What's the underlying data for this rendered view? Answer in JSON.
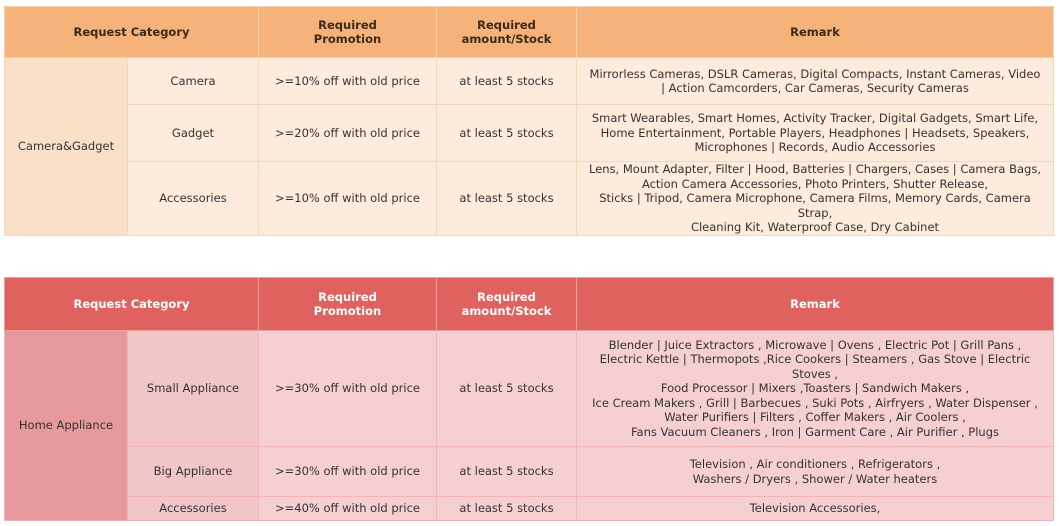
{
  "table_camera": {
    "headers": {
      "category": "Request Category",
      "promotion_1": "Required",
      "promotion_2": "Promotion",
      "amount_1": "Required",
      "amount_2": "amount/Stock",
      "remark": "Remark"
    },
    "group": "Camera&Gadget",
    "rows": [
      {
        "sub": "Camera",
        "promotion": ">=10% off with old price",
        "amount": "at least 5 stocks",
        "remark_lines": [
          "Mirrorless Cameras, DSLR Cameras, Digital Compacts, Instant Cameras, Video",
          "| Action Camcorders, Car Cameras, Security Cameras"
        ]
      },
      {
        "sub": "Gadget",
        "promotion": ">=20% off with old price",
        "amount": "at least 5 stocks",
        "remark_lines": [
          "Smart Wearables, Smart Homes, Activity Tracker, Digital Gadgets, Smart Life,",
          "Home Entertainment, Portable Players, Headphones | Headsets, Speakers,",
          "Microphones | Records, Audio Accessories"
        ]
      },
      {
        "sub": "Accessories",
        "promotion": ">=10% off with old price",
        "amount": "at least 5 stocks",
        "remark_lines": [
          "Lens, Mount Adapter, Filter | Hood, Batteries | Chargers, Cases | Camera Bags,",
          "Action Camera Accessories, Photo Printers, Shutter Release,",
          "Sticks | Tripod, Camera Microphone, Camera Films, Memory Cards, Camera Strap,",
          "Cleaning Kit, Waterproof Case, Dry Cabinet"
        ]
      }
    ]
  },
  "table_home": {
    "headers": {
      "category": "Request Category",
      "promotion_1": "Required",
      "promotion_2": "Promotion",
      "amount_1": "Required",
      "amount_2": "amount/Stock",
      "remark": "Remark"
    },
    "group": "Home Appliance",
    "rows": [
      {
        "sub": "Small Appliance",
        "promotion": ">=30% off with old price",
        "amount": "at least 5 stocks",
        "remark_lines": [
          "Blender | Juice Extractors , Microwave | Ovens , Electric Pot | Grill Pans ,",
          "Electric Kettle | Thermopots ,Rice Cookers | Steamers , Gas Stove | Electric Stoves ,",
          "Food Processor | Mixers ,Toasters | Sandwich Makers ,",
          "Ice Cream Makers , Grill | Barbecues , Suki Pots , Airfryers , Water Dispenser ,",
          "Water Purifiers | Filters , Coffer Makers , Air Coolers ,",
          "Fans Vacuum Cleaners , Iron | Garment Care , Air Purifier , Plugs"
        ]
      },
      {
        "sub": "Big Appliance",
        "promotion": ">=30% off with old price",
        "amount": "at least 5 stocks",
        "remark_lines": [
          "Television , Air conditioners , Refrigerators ,",
          "Washers / Dryers , Shower / Water heaters"
        ]
      },
      {
        "sub": "Accessories",
        "promotion": ">=40% off with old price",
        "amount": "at least 5 stocks",
        "remark_lines": [
          "Television Accessories,"
        ]
      }
    ]
  }
}
